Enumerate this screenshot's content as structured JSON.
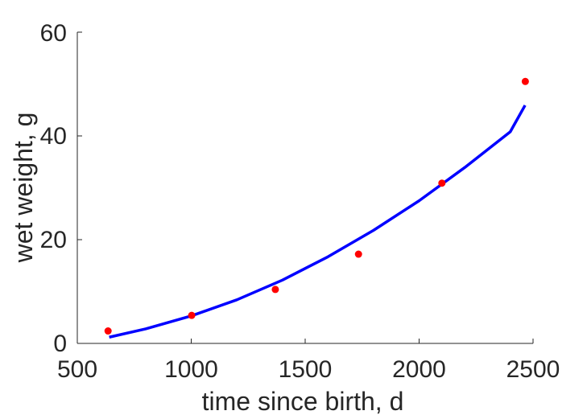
{
  "chart_data": {
    "type": "scatter",
    "xlabel": "time since birth, d",
    "ylabel": "wet weight, g",
    "xlim": [
      500,
      2500
    ],
    "ylim": [
      0,
      60
    ],
    "x_ticks": [
      "500",
      "1000",
      "1500",
      "2000",
      "2500"
    ],
    "y_ticks": [
      "0",
      "20",
      "40",
      "60"
    ],
    "grid": false,
    "series": [
      {
        "kind": "points",
        "color": "#ff0000",
        "x": [
          635,
          1002,
          1369,
          1734,
          2100,
          2466
        ],
        "y": [
          2.4,
          5.4,
          10.4,
          17.2,
          30.9,
          50.5
        ]
      },
      {
        "kind": "line",
        "color": "#0000ff",
        "x": [
          640,
          800,
          1000,
          1200,
          1400,
          1600,
          1800,
          2000,
          2200,
          2400,
          2465
        ],
        "y": [
          1.2,
          2.8,
          5.3,
          8.4,
          12.2,
          16.7,
          21.8,
          27.5,
          33.9,
          40.8,
          45.9
        ]
      }
    ]
  }
}
